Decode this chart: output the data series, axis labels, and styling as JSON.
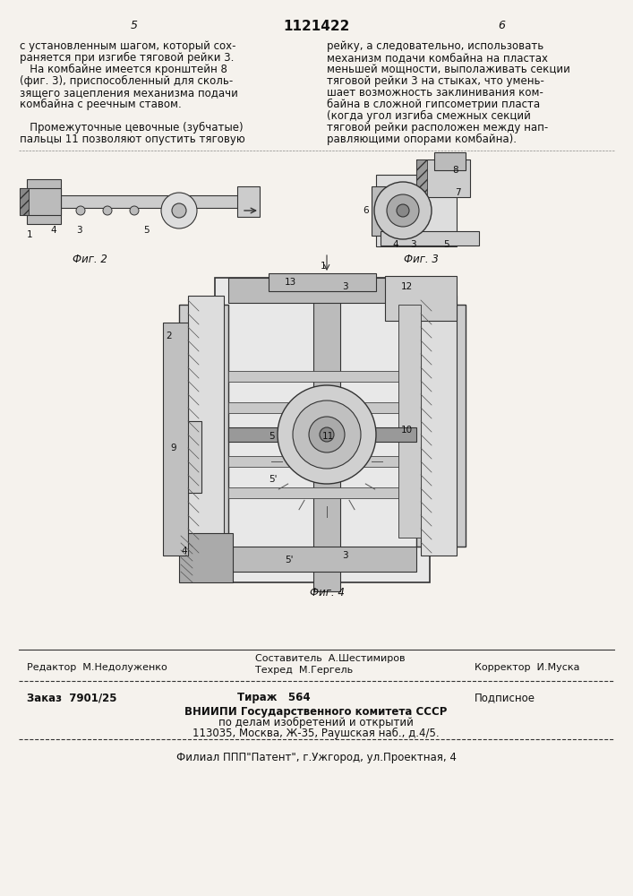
{
  "bg_color": "#f5f2ed",
  "page_number_left": "5",
  "patent_number": "1121422",
  "page_number_right": "6",
  "left_column_text": [
    "с установленным шагом, который сох-",
    "раняется при изгибе тяговой рейки 3.",
    "   На комбайне имеется кронштейн 8",
    "(фиг. 3), приспособленный для сколь-",
    "зящего зацепления механизма подачи",
    "комбайна с реечным ставом.",
    "",
    "   Промежуточные цевочные (зубчатые)",
    "пальцы 11 позволяют опустить тяговую"
  ],
  "right_column_text": [
    "рейку, а следовательно, использовать",
    "механизм подачи комбайна на пластах",
    "меньшей мощности, выполаживать секции",
    "тяговой рейки 3 на стыках, что умень-",
    "шает возможность заклинивания ком-",
    "байна в сложной гипсометрии пласта",
    "(когда угол изгиба смежных секций",
    "тяговой рейки расположен между нап-",
    "равляющими опорами комбайна)."
  ],
  "fig2_label": "Фиг. 2",
  "fig3_label": "Фиг. 3",
  "fig4_label": "Фиг. 4",
  "editor_line": "Редактор  М.Недолуженко",
  "composer_line1": "Составитель  А.Шестимиров",
  "composer_line2": "Техред  М.Гергель",
  "corrector_line": "Корректор  И.Муска",
  "order_line": "Заказ  7901/25",
  "tirazh_line": "Тираж   564",
  "podpisnoe_line": "Подписное",
  "vniishi_line1": "ВНИИПИ Государственного комитета СССР",
  "vniishi_line2": "по делам изобретений и открытий",
  "vniishi_line3": "113035, Москва, Ж-35, Раушская наб., д.4/5.",
  "filial_line": "Филиал ППП\"Патент\", г.Ужгород, ул.Проектная, 4"
}
